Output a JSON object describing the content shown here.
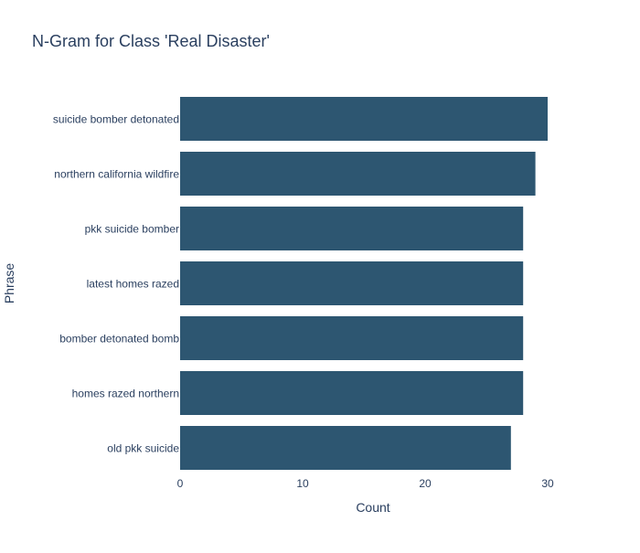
{
  "chart_data": {
    "type": "bar",
    "orientation": "horizontal",
    "title": "N-Gram for Class 'Real Disaster'",
    "xlabel": "Count",
    "ylabel": "Phrase",
    "categories": [
      "suicide bomber detonated",
      "northern california wildfire",
      "pkk suicide bomber",
      "latest homes razed",
      "bomber detonated bomb",
      "homes razed northern",
      "old pkk suicide"
    ],
    "values": [
      30,
      29,
      28,
      28,
      28,
      28,
      27
    ],
    "xlim": [
      0,
      35
    ],
    "xticks": [
      0,
      10,
      20,
      30
    ],
    "grid": false,
    "legend": "none"
  },
  "colors": {
    "bar": "#2d5671",
    "text": "#2a3f5f",
    "background": "#ffffff"
  }
}
